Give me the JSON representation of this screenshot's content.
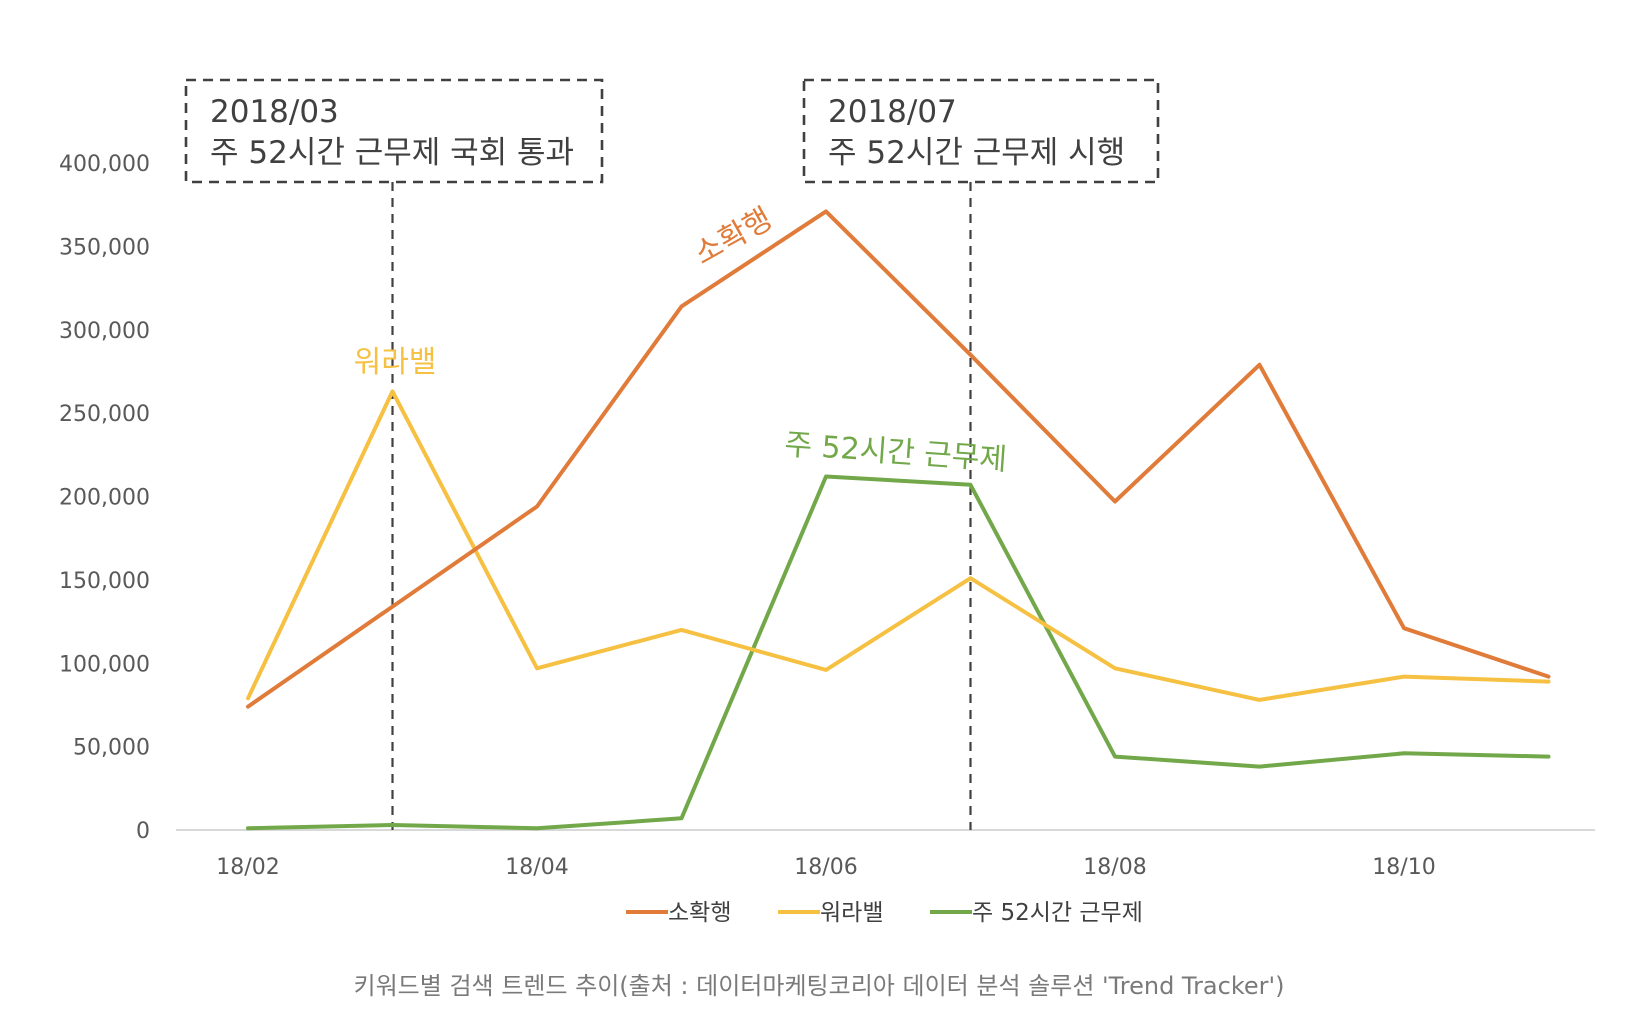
{
  "chart_data": {
    "type": "line",
    "x": [
      "18/02",
      "18/03",
      "18/04",
      "18/05",
      "18/06",
      "18/07",
      "18/08",
      "18/09",
      "18/10",
      "18/11"
    ],
    "x_tick_labels": [
      "18/02",
      "18/04",
      "18/06",
      "18/08",
      "18/10"
    ],
    "ylim": [
      0,
      400000
    ],
    "y_tick_labels": [
      "0",
      "50,000",
      "100,000",
      "150,000",
      "200,000",
      "250,000",
      "300,000",
      "350,000",
      "400,000"
    ],
    "grid": false,
    "legend_position": "bottom",
    "series": [
      {
        "name": "소확행",
        "color": "#e07b39",
        "values": [
          74000,
          134000,
          194000,
          314000,
          371000,
          285000,
          197000,
          279000,
          121000,
          92000
        ]
      },
      {
        "name": "워라밸",
        "color": "#f6c142",
        "values": [
          79000,
          263000,
          97000,
          120000,
          96000,
          151000,
          97000,
          78000,
          92000,
          89000
        ]
      },
      {
        "name": "주 52시간 근무제",
        "color": "#72a84a",
        "values": [
          1000,
          3000,
          1000,
          7000,
          212000,
          207000,
          44000,
          38000,
          46000,
          44000
        ]
      }
    ],
    "annotations": [
      {
        "x": "18/03",
        "line1": "2018/03",
        "line2": "주 52시간 근무제 국회 통과"
      },
      {
        "x": "18/07",
        "line1": "2018/07",
        "line2": "주 52시간 근무제 시행"
      }
    ],
    "caption": "키워드별 검색 트렌드 추이(출처 : 데이터마케팅코리아 데이터 분석 솔루션 'Trend Tracker')"
  }
}
